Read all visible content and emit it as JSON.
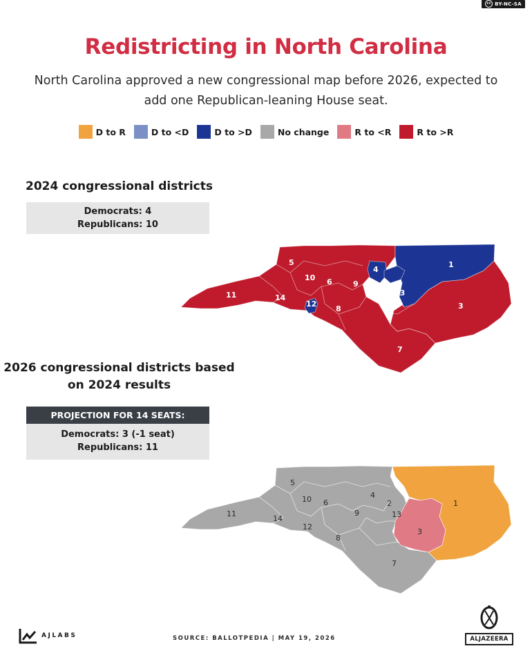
{
  "license": "BY-NC-SA",
  "title": "Redistricting in North Carolina",
  "subtitle": "North Carolina approved a new congressional map before 2026, expected to add one Republican-leaning House seat.",
  "legend": [
    {
      "label": "D to R",
      "color": "#f0a33e"
    },
    {
      "label": "D to <D",
      "color": "#7b90c4"
    },
    {
      "label": "D to >D",
      "color": "#1c3493"
    },
    {
      "label": "No change",
      "color": "#a8a8a8"
    },
    {
      "label": "R to <R",
      "color": "#e07a85"
    },
    {
      "label": "R to >R",
      "color": "#bf1b2c"
    }
  ],
  "section_2024": {
    "title": "2024 congressional districts",
    "democrats": "Democrats: 4",
    "republicans": "Republicans: 10"
  },
  "section_2026": {
    "title": "2026 congressional districts based on 2024 results",
    "header": "PROJECTION FOR 14 SEATS:",
    "democrats": "Democrats: 3 (-1 seat)",
    "republicans": "Republicans: 11"
  },
  "map_2024_labels": [
    "5",
    "10",
    "6",
    "9",
    "4",
    "1",
    "13",
    "11",
    "14",
    "12",
    "8",
    "3",
    "7"
  ],
  "map_2026_labels": [
    "5",
    "10",
    "6",
    "4",
    "2",
    "1",
    "9",
    "13",
    "11",
    "14",
    "12",
    "3",
    "8",
    "7"
  ],
  "footer": {
    "brand": "AJLABS",
    "source": "SOURCE:  BALLOTPEDIA    |    MAY 19, 2026",
    "logo": "ALJAZEERA"
  }
}
